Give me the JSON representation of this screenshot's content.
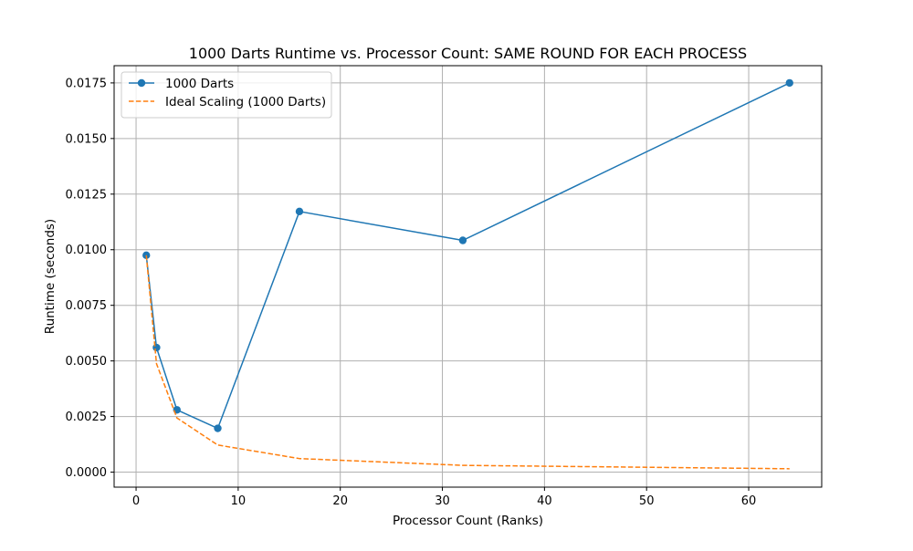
{
  "chart_data": {
    "type": "line",
    "title": "1000 Darts Runtime vs. Processor Count: SAME ROUND FOR EACH PROCESS",
    "xlabel": "Processor Count (Ranks)",
    "ylabel": "Runtime (seconds)",
    "xlim": [
      -2.15,
      67.15
    ],
    "ylim": [
      -0.000675,
      0.018275
    ],
    "xticks": [
      0,
      10,
      20,
      30,
      40,
      50,
      60
    ],
    "xtick_labels": [
      "0",
      "10",
      "20",
      "30",
      "40",
      "50",
      "60"
    ],
    "yticks": [
      0.0,
      0.0025,
      0.005,
      0.0075,
      0.01,
      0.0125,
      0.015,
      0.0175
    ],
    "ytick_labels": [
      "0.0000",
      "0.0025",
      "0.0050",
      "0.0075",
      "0.0100",
      "0.0125",
      "0.0150",
      "0.0175"
    ],
    "grid": true,
    "legend_position": "top-left",
    "series": [
      {
        "name": "1000 Darts",
        "style": "solid-with-circle-markers",
        "color": "#1f77b4",
        "x": [
          1,
          2,
          4,
          8,
          16,
          32,
          64
        ],
        "y": [
          0.00975,
          0.0056,
          0.0028,
          0.00197,
          0.01172,
          0.01042,
          0.0175
        ]
      },
      {
        "name": "Ideal Scaling (1000 Darts)",
        "style": "dashed",
        "color": "#ff7f0e",
        "x": [
          1,
          2,
          4,
          8,
          16,
          32,
          64
        ],
        "y": [
          0.00975,
          0.004875,
          0.0024375,
          0.00121875,
          0.000609375,
          0.0003046875,
          0.00015234375
        ]
      }
    ]
  }
}
